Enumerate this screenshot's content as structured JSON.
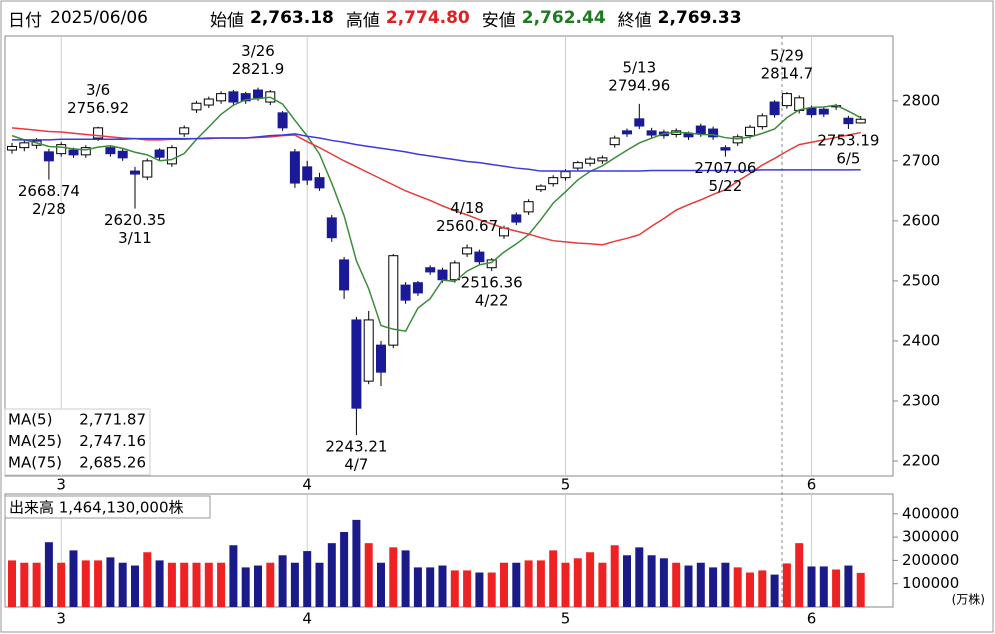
{
  "header": {
    "date_label": "日付",
    "date": "2025/06/06",
    "fields": [
      {
        "label": "始値",
        "value": "2,763.18",
        "color": "#000000"
      },
      {
        "label": "高値",
        "value": "2,774.80",
        "color": "#e02020"
      },
      {
        "label": "安値",
        "value": "2,762.44",
        "color": "#1f7a1f"
      },
      {
        "label": "終値",
        "value": "2,769.33",
        "color": "#000000"
      }
    ]
  },
  "chart_data": [
    {
      "type": "candlestick",
      "categories": [
        null,
        null,
        null,
        null,
        "3",
        null,
        null,
        null,
        null,
        null,
        null,
        null,
        null,
        null,
        null,
        null,
        null,
        null,
        null,
        null,
        null,
        null,
        null,
        null,
        "4",
        null,
        null,
        null,
        null,
        null,
        null,
        null,
        null,
        null,
        null,
        null,
        null,
        null,
        null,
        null,
        null,
        null,
        null,
        null,
        null,
        "5",
        null,
        null,
        null,
        null,
        null,
        null,
        null,
        null,
        null,
        null,
        null,
        null,
        null,
        null,
        null,
        null,
        null,
        null,
        null,
        "6",
        null,
        null,
        null,
        null
      ],
      "open": [
        2718,
        2722,
        2726,
        2715,
        2712,
        2718,
        2710,
        2738,
        2722,
        2716,
        2683,
        2673,
        2718,
        2695,
        2745,
        2785,
        2793,
        2800,
        2815,
        2812,
        2818,
        2798,
        2780,
        2715,
        2690,
        2672,
        2605,
        2535,
        2435,
        2333,
        2393,
        2393,
        2493,
        2497,
        2522,
        2518,
        2502,
        2545,
        2548,
        2522,
        2575,
        2610,
        2615,
        2652,
        2662,
        2672,
        2688,
        2696,
        2700,
        2727,
        2750,
        2770,
        2750,
        2748,
        2744,
        2745,
        2758,
        2753,
        2722,
        2730,
        2742,
        2757,
        2798,
        2792,
        2784,
        2788,
        2786,
        2790,
        2771,
        2763.18
      ],
      "high": [
        2730,
        2734,
        2738,
        2720,
        2731,
        2722,
        2726,
        2756.92,
        2726,
        2720,
        2690,
        2704,
        2721,
        2726,
        2759,
        2800,
        2807,
        2816,
        2818,
        2815,
        2821.9,
        2818,
        2783,
        2720,
        2700,
        2680,
        2610,
        2540,
        2440,
        2450,
        2400,
        2545,
        2498,
        2500,
        2526,
        2522,
        2534,
        2560.67,
        2552,
        2538,
        2592,
        2614,
        2636,
        2661,
        2676,
        2686,
        2700,
        2707,
        2709,
        2742,
        2754,
        2794.96,
        2755,
        2752,
        2754,
        2749,
        2762,
        2757,
        2726,
        2744,
        2760,
        2779,
        2801,
        2814.7,
        2809,
        2792,
        2790,
        2795,
        2775,
        2774.8
      ],
      "low": [
        2712,
        2716,
        2720,
        2668.74,
        2707,
        2705,
        2705,
        2733,
        2707,
        2700,
        2620.35,
        2668,
        2701,
        2690,
        2740,
        2780,
        2788,
        2795,
        2793,
        2795,
        2800,
        2793,
        2750,
        2655,
        2660,
        2650,
        2565,
        2470,
        2243.21,
        2328,
        2325,
        2388,
        2462,
        2475,
        2510,
        2497,
        2497,
        2540,
        2527,
        2516.36,
        2570,
        2593,
        2610,
        2648,
        2657,
        2667,
        2683,
        2691,
        2695,
        2722,
        2740,
        2753,
        2738,
        2737,
        2739,
        2735,
        2740,
        2735,
        2707.06,
        2725,
        2737,
        2752,
        2772,
        2787,
        2779,
        2772,
        2773,
        2785,
        2753.19,
        2762.44
      ],
      "close": [
        2724,
        2730,
        2733,
        2700,
        2727,
        2710,
        2722,
        2755,
        2712,
        2705,
        2678,
        2700,
        2706,
        2722,
        2755,
        2796,
        2803,
        2812,
        2798,
        2800,
        2805,
        2815,
        2755,
        2663,
        2668,
        2655,
        2572,
        2485,
        2288,
        2435,
        2348,
        2542,
        2468,
        2480,
        2515,
        2502,
        2530,
        2555,
        2532,
        2535,
        2588,
        2598,
        2632,
        2658,
        2672,
        2682,
        2697,
        2703,
        2705,
        2738,
        2745,
        2758,
        2743,
        2742,
        2750,
        2740,
        2745,
        2740,
        2718,
        2740,
        2756,
        2775,
        2777,
        2812,
        2805,
        2777,
        2778,
        2792,
        2762,
        2769.33
      ],
      "up_color": "#ffffff",
      "down_color": "#1a1a99",
      "series": [
        {
          "name": "MA(5)",
          "color": "#3c8c3c",
          "legend_value": {
            "value": 2771.87,
            "label": "2,771.87"
          },
          "values": [
            2742,
            2735,
            2730,
            2724,
            2722.8,
            2720,
            2718.4,
            2722.8,
            2725.2,
            2720.8,
            2714.4,
            2710,
            2700.2,
            2702.2,
            2712.2,
            2735.8,
            2756.4,
            2777.6,
            2792.8,
            2801.8,
            2803.6,
            2806,
            2794.6,
            2767.6,
            2741.2,
            2711.2,
            2662.6,
            2608.6,
            2533.6,
            2487,
            2425.6,
            2419.6,
            2416.2,
            2454.6,
            2470.6,
            2501.4,
            2499,
            2516.4,
            2526.8,
            2530.8,
            2548,
            2561.6,
            2577,
            2602.2,
            2629.6,
            2648.4,
            2668.2,
            2682.4,
            2691.8,
            2705,
            2717.6,
            2729.8,
            2737.8,
            2745.2,
            2747.6,
            2746.6,
            2744,
            2743.4,
            2738.6,
            2736.6,
            2739.8,
            2745.8,
            2753.2,
            2772,
            2785,
            2789.2,
            2789.8,
            2792.8,
            2782.8,
            2771.87
          ]
        },
        {
          "name": "MA(25)",
          "color": "#e83a3a",
          "legend_value": {
            "value": 2747.16,
            "label": "2,747.16"
          },
          "values": [
            2755,
            2753,
            2751,
            2749,
            2748,
            2746,
            2744,
            2742,
            2740,
            2738,
            2737,
            2735,
            2735,
            2736,
            2736,
            2737,
            2737,
            2738,
            2738,
            2738,
            2739,
            2740,
            2742,
            2743,
            2732,
            2722,
            2711,
            2700,
            2690,
            2680,
            2670,
            2660,
            2650,
            2642,
            2634,
            2625,
            2617,
            2610,
            2602,
            2595,
            2588,
            2583,
            2578,
            2572,
            2567,
            2565,
            2563,
            2562,
            2560,
            2566,
            2571,
            2577,
            2591,
            2604,
            2618,
            2627,
            2635,
            2644,
            2652,
            2666,
            2679,
            2693,
            2704,
            2716,
            2727,
            2731,
            2735,
            2739,
            2743,
            2747.16
          ]
        },
        {
          "name": "MA(75)",
          "color": "#3a3ae0",
          "legend_value": {
            "value": 2685.26,
            "label": "2,685.26"
          },
          "values": [
            2735,
            2735,
            2735,
            2735,
            2736,
            2736,
            2736,
            2736,
            2736,
            2736,
            2737,
            2737,
            2737,
            2737,
            2737,
            2737,
            2738,
            2738,
            2738,
            2738,
            2740,
            2742,
            2743,
            2745,
            2741,
            2738,
            2734,
            2731,
            2727,
            2724,
            2721,
            2718,
            2715,
            2711,
            2708,
            2705,
            2702,
            2699,
            2697,
            2694,
            2691,
            2688,
            2686,
            2683,
            2683,
            2683,
            2683,
            2683,
            2683,
            2683,
            2683,
            2683,
            2684,
            2684,
            2684,
            2684,
            2684,
            2684,
            2684,
            2684,
            2684,
            2685,
            2685,
            2685,
            2685,
            2685,
            2685,
            2685,
            2685,
            2685.26
          ]
        }
      ],
      "annotations": [
        {
          "label": "3/6",
          "value": 2756.92
        },
        {
          "label": "2/28",
          "value": 2668.74
        },
        {
          "label": "3/11",
          "value": 2620.35
        },
        {
          "label": "3/26",
          "value": 2821.9
        },
        {
          "label": "4/7",
          "value": 2243.21
        },
        {
          "label": "4/18",
          "value": 2560.67
        },
        {
          "label": "4/22",
          "value": 2516.36
        },
        {
          "label": "5/13",
          "value": 2794.96
        },
        {
          "label": "5/22",
          "value": 2707.06
        },
        {
          "label": "5/29",
          "value": 2814.7
        },
        {
          "label": "6/5",
          "value": 2753.19
        }
      ],
      "ylim": [
        2175,
        2908
      ],
      "yticks": [
        2200,
        2300,
        2400,
        2500,
        2600,
        2700,
        2800
      ]
    },
    {
      "type": "bar",
      "title": "出来高  1,464,130,000株",
      "unit": "(万株)",
      "values": [
        200000,
        190000,
        190000,
        278000,
        190000,
        243000,
        200000,
        200000,
        213000,
        190000,
        178000,
        235000,
        200000,
        190000,
        190000,
        190000,
        190000,
        190000,
        265000,
        170000,
        178000,
        190000,
        222000,
        190000,
        240000,
        190000,
        274000,
        322000,
        374000,
        274000,
        190000,
        256000,
        243000,
        170000,
        170000,
        178000,
        157000,
        157000,
        148000,
        148000,
        190000,
        190000,
        200000,
        200000,
        243000,
        190000,
        209000,
        235000,
        190000,
        265000,
        222000,
        256000,
        222000,
        209000,
        190000,
        178000,
        190000,
        170000,
        190000,
        170000,
        148000,
        157000,
        139000,
        187000,
        274000,
        174000,
        174000,
        161000,
        178000,
        146413
      ],
      "up_color": "#ee2222",
      "down_color": "#1a1a88",
      "ylim": [
        0,
        485000
      ],
      "yticks": [
        100000,
        200000,
        300000,
        400000
      ]
    }
  ]
}
